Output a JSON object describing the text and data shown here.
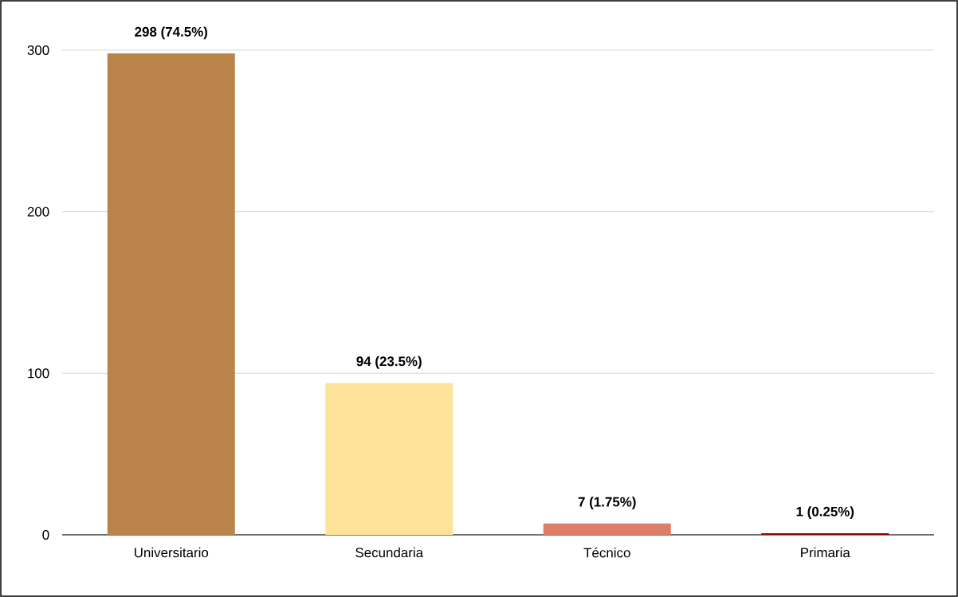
{
  "chart_data": {
    "type": "bar",
    "categories": [
      "Universitario",
      "Secundaria",
      "Técnico",
      "Primaria"
    ],
    "values": [
      298,
      94,
      7,
      1
    ],
    "colors": [
      "#b9834a",
      "#fde49a",
      "#dd7e6b",
      "#990000"
    ],
    "value_labels": [
      "298 (74.5%)",
      "94 (23.5%)",
      "7 (1.75%)",
      "1 (0.25%)"
    ],
    "ylim": [
      0,
      300
    ],
    "yticks": [
      0,
      100,
      200,
      300
    ],
    "grid": "y"
  }
}
